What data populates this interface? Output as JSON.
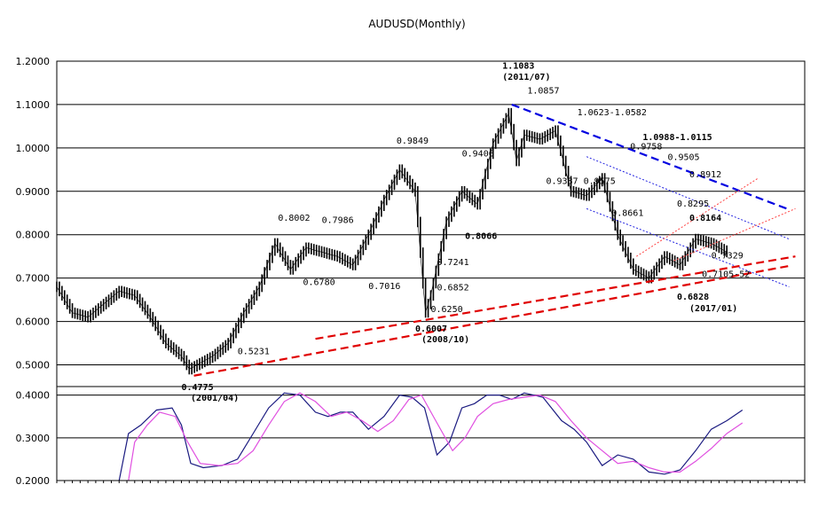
{
  "chart_data": {
    "type": "line",
    "title": "AUDUSD(Monthly)",
    "price_panel": {
      "ylim": [
        0.45,
        1.2
      ],
      "yticks": [
        "1.2000",
        "1.1000",
        "1.0000",
        "0.9000",
        "0.8000",
        "0.7000",
        "0.6000",
        "0.5000"
      ],
      "ytick_values": [
        1.2,
        1.1,
        1.0,
        0.9,
        0.8,
        0.7,
        0.6,
        0.5
      ],
      "grid": true,
      "x_start": 1997.0,
      "x_end": 2021.0,
      "series": [
        {
          "kind": "ohlc-bars",
          "color": "#000000",
          "x": [
            1997.0,
            1997.5,
            1998.0,
            1998.5,
            1999.0,
            1999.5,
            2000.0,
            2000.5,
            2001.0,
            2001.25,
            2001.5,
            2002.0,
            2002.5,
            2003.0,
            2003.5,
            2004.0,
            2004.5,
            2005.0,
            2005.5,
            2006.0,
            2006.5,
            2007.0,
            2007.5,
            2008.0,
            2008.5,
            2008.83,
            2009.0,
            2009.5,
            2010.0,
            2010.5,
            2011.0,
            2011.5,
            2011.75,
            2012.0,
            2012.5,
            2013.0,
            2013.5,
            2014.0,
            2014.5,
            2015.0,
            2015.5,
            2016.0,
            2016.5,
            2017.0,
            2017.5,
            2018.0,
            2018.5
          ],
          "values": [
            0.68,
            0.62,
            0.61,
            0.64,
            0.67,
            0.66,
            0.61,
            0.55,
            0.52,
            0.49,
            0.5,
            0.52,
            0.55,
            0.62,
            0.68,
            0.78,
            0.72,
            0.77,
            0.76,
            0.75,
            0.73,
            0.8,
            0.88,
            0.95,
            0.9,
            0.62,
            0.66,
            0.83,
            0.9,
            0.87,
            1.01,
            1.08,
            0.97,
            1.03,
            1.02,
            1.04,
            0.9,
            0.89,
            0.93,
            0.8,
            0.72,
            0.7,
            0.75,
            0.73,
            0.79,
            0.78,
            0.76
          ]
        }
      ],
      "trendlines": [
        {
          "color": "#0000e0",
          "style": "dashed-bold",
          "from": [
            2011.6,
            1.1
          ],
          "to": [
            2020.5,
            0.858
          ]
        },
        {
          "color": "#2020e0",
          "style": "dotted",
          "from": [
            2014.0,
            0.98
          ],
          "to": [
            2020.5,
            0.79
          ]
        },
        {
          "color": "#2020e0",
          "style": "dotted",
          "from": [
            2014.0,
            0.86
          ],
          "to": [
            2020.5,
            0.68
          ]
        },
        {
          "color": "#e00000",
          "style": "dashed-bold",
          "from": [
            2001.4,
            0.475
          ],
          "to": [
            2020.5,
            0.728
          ]
        },
        {
          "color": "#e00000",
          "style": "dashed-bold",
          "from": [
            2005.3,
            0.56
          ],
          "to": [
            2020.7,
            0.75
          ]
        },
        {
          "color": "#ff4040",
          "style": "dotted",
          "from": [
            2015.6,
            0.75
          ],
          "to": [
            2019.5,
            0.93
          ]
        },
        {
          "color": "#ff4040",
          "style": "dotted",
          "from": [
            2016.8,
            0.74
          ],
          "to": [
            2020.7,
            0.86
          ]
        }
      ],
      "annotations": [
        {
          "text": "1.1083",
          "bold": true,
          "x": 2011.3,
          "y": 1.183
        },
        {
          "text": "(2011/07)",
          "bold": true,
          "x": 2011.3,
          "y": 1.157
        },
        {
          "text": "1.0857",
          "bold": false,
          "x": 2012.1,
          "y": 1.125
        },
        {
          "text": "1.0623-1.0582",
          "bold": false,
          "x": 2013.7,
          "y": 1.075
        },
        {
          "text": "1.0988-1.0115",
          "bold": true,
          "x": 2015.8,
          "y": 1.018
        },
        {
          "text": "0.9849",
          "bold": false,
          "x": 2007.9,
          "y": 1.01
        },
        {
          "text": "0.9406",
          "bold": false,
          "x": 2010.0,
          "y": 0.98
        },
        {
          "text": "0.9758",
          "bold": false,
          "x": 2015.4,
          "y": 0.997
        },
        {
          "text": "0.9505",
          "bold": false,
          "x": 2016.6,
          "y": 0.972
        },
        {
          "text": "0.9387 0.9575",
          "bold": false,
          "x": 2012.7,
          "y": 0.917
        },
        {
          "text": "0.8912",
          "bold": false,
          "x": 2017.3,
          "y": 0.932
        },
        {
          "text": "0.8295",
          "bold": false,
          "x": 2016.9,
          "y": 0.865
        },
        {
          "text": "0.8661",
          "bold": false,
          "x": 2014.8,
          "y": 0.843
        },
        {
          "text": "0.8164",
          "bold": true,
          "x": 2017.3,
          "y": 0.832
        },
        {
          "text": "0.8002",
          "bold": false,
          "x": 2004.1,
          "y": 0.832
        },
        {
          "text": "0.7986",
          "bold": false,
          "x": 2005.5,
          "y": 0.827
        },
        {
          "text": "0.8066",
          "bold": true,
          "x": 2010.1,
          "y": 0.79
        },
        {
          "text": "0.7241",
          "bold": false,
          "x": 2009.2,
          "y": 0.73
        },
        {
          "text": "0.7329",
          "bold": false,
          "x": 2018.0,
          "y": 0.745
        },
        {
          "text": "0.7105-52",
          "bold": false,
          "x": 2017.7,
          "y": 0.702
        },
        {
          "text": "0.6780",
          "bold": false,
          "x": 2004.9,
          "y": 0.684
        },
        {
          "text": "0.7016",
          "bold": false,
          "x": 2007.0,
          "y": 0.675
        },
        {
          "text": "0.6852",
          "bold": false,
          "x": 2009.2,
          "y": 0.672
        },
        {
          "text": "0.6250",
          "bold": false,
          "x": 2009.0,
          "y": 0.622
        },
        {
          "text": "0.6828",
          "bold": true,
          "x": 2016.9,
          "y": 0.65
        },
        {
          "text": "(2017/01)",
          "bold": true,
          "x": 2017.3,
          "y": 0.624
        },
        {
          "text": "0.6007",
          "bold": true,
          "x": 2008.5,
          "y": 0.577
        },
        {
          "text": "(2008/10)",
          "bold": true,
          "x": 2008.7,
          "y": 0.552
        },
        {
          "text": "0.5231",
          "bold": false,
          "x": 2002.8,
          "y": 0.525
        },
        {
          "text": "0.4775",
          "bold": true,
          "x": 2001.0,
          "y": 0.442
        },
        {
          "text": "(2001/04)",
          "bold": true,
          "x": 2001.3,
          "y": 0.417
        }
      ]
    },
    "oscillator_panel": {
      "ylim": [
        0.2,
        0.42
      ],
      "yticks": [
        "0.4000",
        "0.3000",
        "0.2000"
      ],
      "ytick_values": [
        0.4,
        0.3,
        0.2
      ],
      "grid": true,
      "series": [
        {
          "color": "#1a1a80",
          "x": [
            1999.0,
            1999.3,
            1999.7,
            2000.2,
            2000.7,
            2001.0,
            2001.3,
            2001.7,
            2002.3,
            2002.8,
            2003.3,
            2003.8,
            2004.3,
            2004.8,
            2005.3,
            2005.7,
            2006.1,
            2006.5,
            2007.0,
            2007.5,
            2008.0,
            2008.4,
            2008.8,
            2009.2,
            2009.6,
            2010.0,
            2010.4,
            2010.8,
            2011.2,
            2011.6,
            2012.0,
            2012.6,
            2013.2,
            2013.6,
            2014.0,
            2014.5,
            2015.0,
            2015.5,
            2016.0,
            2016.5,
            2017.0,
            2017.5,
            2018.0,
            2018.5,
            2019.0
          ],
          "values": [
            0.2,
            0.31,
            0.33,
            0.365,
            0.37,
            0.33,
            0.24,
            0.23,
            0.235,
            0.25,
            0.31,
            0.37,
            0.405,
            0.4,
            0.36,
            0.35,
            0.36,
            0.36,
            0.32,
            0.35,
            0.4,
            0.395,
            0.37,
            0.26,
            0.29,
            0.37,
            0.38,
            0.4,
            0.4,
            0.39,
            0.405,
            0.395,
            0.34,
            0.32,
            0.29,
            0.235,
            0.26,
            0.25,
            0.22,
            0.215,
            0.225,
            0.27,
            0.32,
            0.34,
            0.365
          ]
        },
        {
          "color": "#e050e0",
          "x": [
            1999.3,
            1999.5,
            1999.9,
            2000.3,
            2000.8,
            2001.2,
            2001.6,
            2002.2,
            2002.8,
            2003.3,
            2003.8,
            2004.3,
            2004.8,
            2005.3,
            2005.8,
            2006.3,
            2006.8,
            2007.3,
            2007.8,
            2008.3,
            2008.7,
            2009.2,
            2009.7,
            2010.1,
            2010.5,
            2011.0,
            2011.5,
            2012.0,
            2012.5,
            2013.0,
            2013.5,
            2014.0,
            2014.5,
            2015.0,
            2015.5,
            2016.0,
            2016.5,
            2017.0,
            2017.5,
            2018.0,
            2018.5,
            2019.0
          ],
          "values": [
            0.2,
            0.29,
            0.33,
            0.36,
            0.35,
            0.29,
            0.24,
            0.235,
            0.24,
            0.27,
            0.33,
            0.385,
            0.405,
            0.385,
            0.35,
            0.36,
            0.34,
            0.315,
            0.34,
            0.39,
            0.4,
            0.335,
            0.27,
            0.3,
            0.35,
            0.38,
            0.39,
            0.395,
            0.4,
            0.385,
            0.34,
            0.3,
            0.27,
            0.24,
            0.245,
            0.23,
            0.22,
            0.22,
            0.245,
            0.275,
            0.31,
            0.335
          ]
        }
      ]
    }
  }
}
